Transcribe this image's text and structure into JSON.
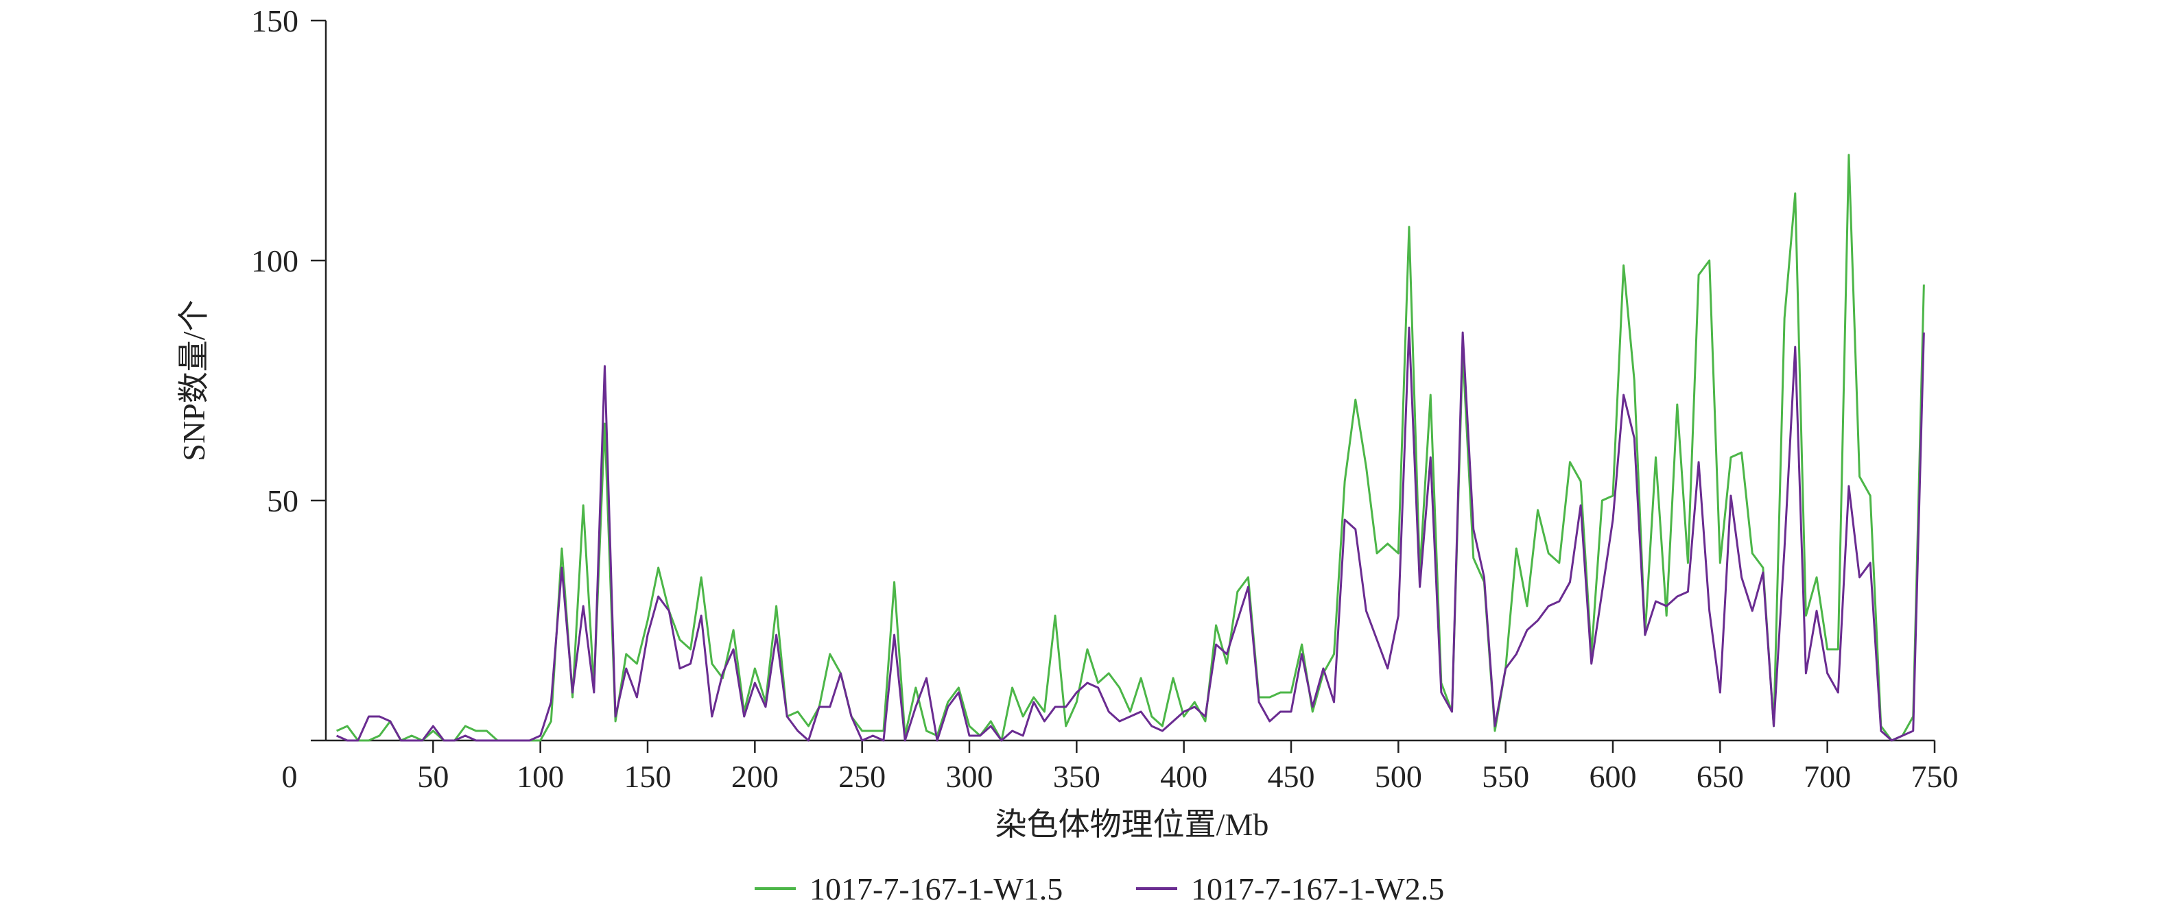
{
  "chart_data": {
    "type": "line",
    "xlabel": "染色体物理位置/Mb",
    "ylabel": "SNP数量/个",
    "x": [
      5,
      10,
      15,
      20,
      25,
      30,
      35,
      40,
      45,
      50,
      55,
      60,
      65,
      70,
      75,
      80,
      85,
      90,
      95,
      100,
      105,
      110,
      115,
      120,
      125,
      130,
      135,
      140,
      145,
      150,
      155,
      160,
      165,
      170,
      175,
      180,
      185,
      190,
      195,
      200,
      205,
      210,
      215,
      220,
      225,
      230,
      235,
      240,
      245,
      250,
      255,
      260,
      265,
      270,
      275,
      280,
      285,
      290,
      295,
      300,
      305,
      310,
      315,
      320,
      325,
      330,
      335,
      340,
      345,
      350,
      355,
      360,
      365,
      370,
      375,
      380,
      385,
      390,
      395,
      400,
      405,
      410,
      415,
      420,
      425,
      430,
      435,
      440,
      445,
      450,
      455,
      460,
      465,
      470,
      475,
      480,
      485,
      490,
      495,
      500,
      505,
      510,
      515,
      520,
      525,
      530,
      535,
      540,
      545,
      550,
      555,
      560,
      565,
      570,
      575,
      580,
      585,
      590,
      595,
      600,
      605,
      610,
      615,
      620,
      625,
      630,
      635,
      640,
      645,
      650,
      655,
      660,
      665,
      670,
      675,
      680,
      685,
      690,
      695,
      700,
      705,
      710,
      715,
      720,
      725,
      730,
      735,
      740,
      745
    ],
    "series": [
      {
        "name": "1017-7-167-1-W1.5",
        "color": "#4cb648",
        "values": [
          2,
          3,
          0,
          0,
          1,
          4,
          0,
          1,
          0,
          2,
          0,
          0,
          3,
          2,
          2,
          0,
          0,
          0,
          0,
          0,
          4,
          40,
          9,
          49,
          11,
          66,
          4,
          18,
          16,
          25,
          36,
          27,
          21,
          19,
          34,
          16,
          13,
          23,
          6,
          15,
          8,
          28,
          5,
          6,
          3,
          7,
          18,
          14,
          5,
          2,
          2,
          2,
          33,
          1,
          11,
          2,
          1,
          8,
          11,
          3,
          1,
          4,
          0,
          11,
          5,
          9,
          6,
          26,
          3,
          8,
          19,
          12,
          14,
          11,
          6,
          13,
          5,
          3,
          13,
          5,
          8,
          4,
          24,
          16,
          31,
          34,
          9,
          9,
          10,
          10,
          20,
          6,
          14,
          18,
          54,
          71,
          57,
          39,
          41,
          39,
          107,
          35,
          72,
          12,
          6,
          81,
          38,
          33,
          2,
          15,
          40,
          28,
          48,
          39,
          37,
          58,
          54,
          18,
          50,
          51,
          99,
          75,
          22,
          59,
          26,
          70,
          37,
          97,
          100,
          37,
          59,
          60,
          39,
          36,
          3,
          88,
          114,
          26,
          34,
          19,
          19,
          122,
          55,
          51,
          3,
          0,
          1,
          5,
          95
        ]
      },
      {
        "name": "1017-7-167-1-W2.5",
        "color": "#6a2c91",
        "values": [
          1,
          0,
          0,
          5,
          5,
          4,
          0,
          0,
          0,
          3,
          0,
          0,
          1,
          0,
          0,
          0,
          0,
          0,
          0,
          1,
          8,
          36,
          10,
          28,
          10,
          78,
          5,
          15,
          9,
          22,
          30,
          27,
          15,
          16,
          26,
          5,
          14,
          19,
          5,
          12,
          7,
          22,
          5,
          2,
          0,
          7,
          7,
          14,
          5,
          0,
          1,
          0,
          22,
          0,
          7,
          13,
          0,
          7,
          10,
          1,
          1,
          3,
          0,
          2,
          1,
          8,
          4,
          7,
          7,
          10,
          12,
          11,
          6,
          4,
          5,
          6,
          3,
          2,
          4,
          6,
          7,
          5,
          20,
          18,
          25,
          32,
          8,
          4,
          6,
          6,
          18,
          7,
          15,
          8,
          46,
          44,
          27,
          21,
          15,
          26,
          86,
          32,
          59,
          10,
          6,
          85,
          44,
          34,
          3,
          15,
          18,
          23,
          25,
          28,
          29,
          33,
          49,
          16,
          31,
          46,
          72,
          63,
          22,
          29,
          28,
          30,
          31,
          58,
          27,
          10,
          51,
          34,
          27,
          35,
          3,
          40,
          82,
          14,
          27,
          14,
          10,
          53,
          34,
          37,
          2,
          0,
          1,
          2,
          85
        ]
      }
    ],
    "xlim": [
      0,
      750
    ],
    "xticks": [
      50,
      100,
      150,
      200,
      250,
      300,
      350,
      400,
      450,
      500,
      550,
      600,
      650,
      700,
      750
    ],
    "ylim": [
      0,
      150
    ],
    "yticks": [
      0,
      50,
      100,
      150
    ]
  }
}
